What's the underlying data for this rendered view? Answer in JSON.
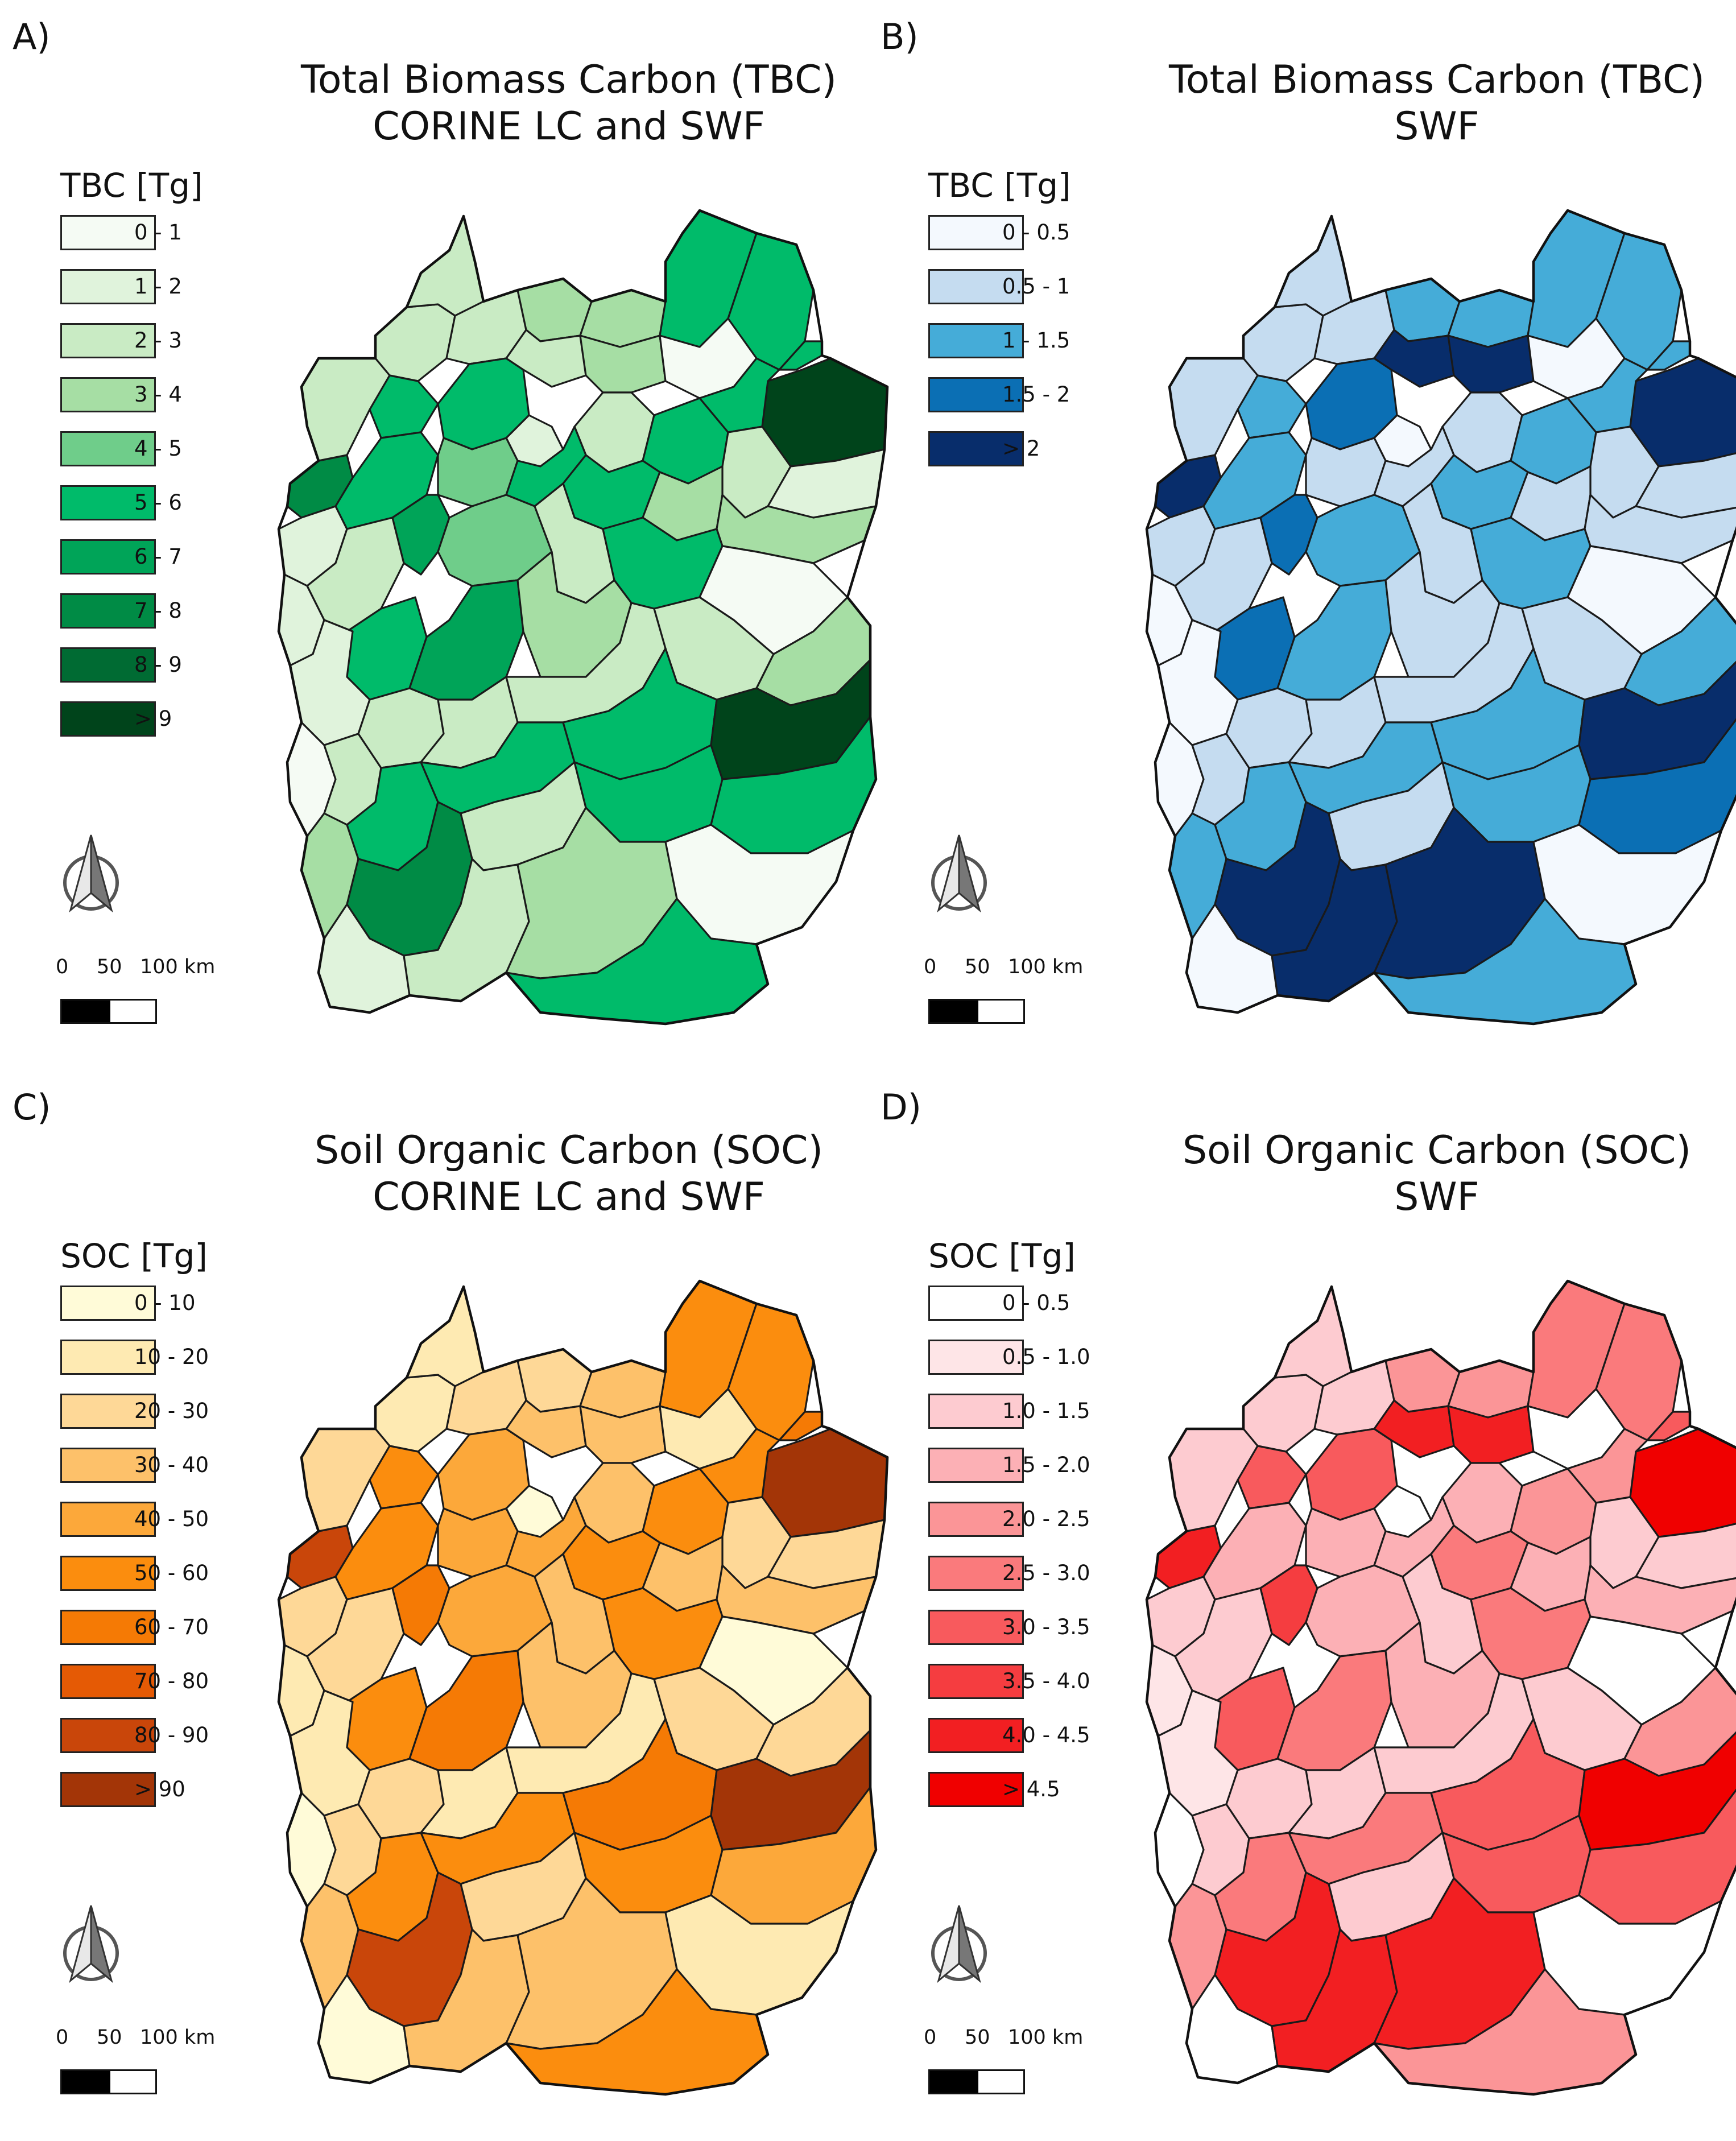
{
  "panels": [
    {
      "label": "A)",
      "title_line1": "Total Biomass Carbon (TBC)",
      "title_line2": "CORINE LC and SWF",
      "legend_title": "TBC [Tg]",
      "legend": [
        {
          "label": "0 - 1",
          "color": "#f5fbf4"
        },
        {
          "label": "1 - 2",
          "color": "#e0f3dc"
        },
        {
          "label": "2 - 3",
          "color": "#c9ebc4"
        },
        {
          "label": "3 - 4",
          "color": "#a6dea4"
        },
        {
          "label": "4 - 5",
          "color": "#6fcd8a"
        },
        {
          "label": "5 - 6",
          "color": "#00bb6a"
        },
        {
          "label": "6 - 7",
          "color": "#00a458"
        },
        {
          "label": "7 - 8",
          "color": "#008b45"
        },
        {
          "label": "8 - 9",
          "color": "#006b33"
        },
        {
          "label": "> 9",
          "color": "#00441b"
        }
      ],
      "region_classes": [
        2,
        2,
        2,
        3,
        3,
        5,
        5,
        5,
        9,
        7,
        2,
        5,
        5,
        1,
        2,
        3,
        0,
        5,
        2,
        5,
        2,
        1,
        1,
        5,
        4,
        5,
        5,
        3,
        3,
        1,
        2,
        5,
        6,
        4,
        2,
        5,
        0,
        1,
        6,
        3,
        0,
        2,
        2
      ]
    },
    {
      "label": "B)",
      "title_line1": "Total Biomass Carbon (TBC)",
      "title_line2": "SWF",
      "legend_title": "TBC [Tg]",
      "legend": [
        {
          "label": "0 - 0.5",
          "color": "#f4f9fe"
        },
        {
          "label": "0.5 - 1",
          "color": "#c5dcf0"
        },
        {
          "label": "1 - 1.5",
          "color": "#45acd8"
        },
        {
          "label": "1.5 - 2",
          "color": "#0b6fb4"
        },
        {
          "label": "> 2",
          "color": "#082d6b"
        }
      ],
      "region_classes": [
        1,
        1,
        1,
        2,
        2,
        2,
        2,
        2,
        4,
        4,
        1,
        2,
        3,
        0,
        4,
        4,
        0,
        2,
        1,
        2,
        1,
        1,
        1,
        2,
        1,
        1,
        2,
        1,
        1,
        0,
        1,
        3,
        3,
        2,
        1,
        2,
        0,
        0,
        2,
        1,
        0,
        1,
        1
      ]
    },
    {
      "label": "C)",
      "title_line1": "Soil Organic Carbon (SOC)",
      "title_line2": "CORINE LC and SWF",
      "legend_title": "SOC [Tg]",
      "legend": [
        {
          "label": "0 - 10",
          "color": "#fffbd8"
        },
        {
          "label": "10 - 20",
          "color": "#feeab2"
        },
        {
          "label": "20 - 30",
          "color": "#fed897"
        },
        {
          "label": "30 - 40",
          "color": "#fdc16a"
        },
        {
          "label": "40 - 50",
          "color": "#fca83a"
        },
        {
          "label": "50 - 60",
          "color": "#fb8d0e"
        },
        {
          "label": "60 - 70",
          "color": "#f57a05"
        },
        {
          "label": "70 - 80",
          "color": "#e55a05"
        },
        {
          "label": "80 - 90",
          "color": "#c9460a"
        },
        {
          "label": "> 90",
          "color": "#a33507"
        }
      ],
      "region_classes": [
        1,
        1,
        2,
        2,
        3,
        5,
        5,
        6,
        9,
        8,
        2,
        5,
        4,
        0,
        3,
        3,
        1,
        5,
        3,
        5,
        2,
        2,
        2,
        5,
        4,
        4,
        5,
        3,
        3,
        1,
        2,
        5,
        6,
        4,
        3,
        5,
        0,
        1,
        6,
        3,
        0,
        2,
        2
      ]
    },
    {
      "label": "D)",
      "title_line1": "Soil Organic Carbon (SOC)",
      "title_line2": "SWF",
      "legend_title": "SOC [Tg]",
      "legend": [
        {
          "label": "0 - 0.5",
          "color": "#ffffff"
        },
        {
          "label": "0.5 - 1.0",
          "color": "#fee5e7"
        },
        {
          "label": "1.0 - 1.5",
          "color": "#fdcbd0"
        },
        {
          "label": "1.5 - 2.0",
          "color": "#fcb0b5"
        },
        {
          "label": "2.0 - 2.5",
          "color": "#fb9597"
        },
        {
          "label": "2.5 - 3.0",
          "color": "#fa7a7c"
        },
        {
          "label": "3.0 - 3.5",
          "color": "#f85a5d"
        },
        {
          "label": "3.5 - 4.0",
          "color": "#f53d40"
        },
        {
          "label": "4.0 - 4.5",
          "color": "#f21f22"
        },
        {
          "label": "> 4.5",
          "color": "#f00000"
        }
      ],
      "region_classes": [
        2,
        2,
        2,
        4,
        4,
        5,
        5,
        6,
        9,
        8,
        2,
        6,
        6,
        0,
        8,
        8,
        0,
        4,
        3,
        4,
        2,
        2,
        2,
        3,
        3,
        3,
        5,
        3,
        3,
        1,
        2,
        6,
        7,
        3,
        2,
        5,
        0,
        1,
        5,
        3,
        0,
        2,
        2
      ]
    }
  ],
  "scalebar": {
    "labels": [
      "0",
      "50",
      "100 km"
    ]
  }
}
